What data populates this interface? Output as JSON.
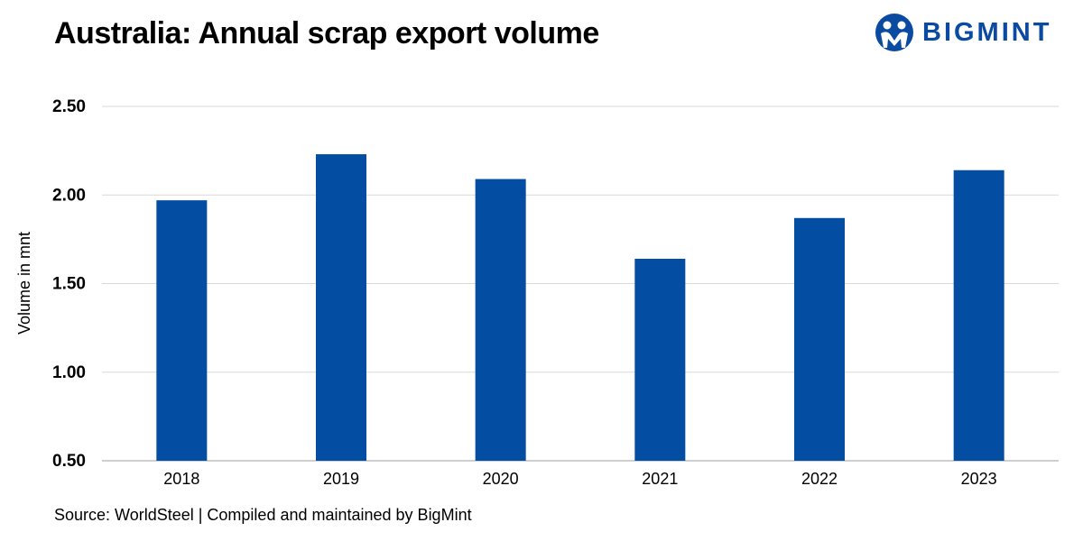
{
  "header": {
    "title": "Australia: Annual scrap export volume"
  },
  "logo": {
    "text": "BIGMINT",
    "color": "#0a4aa0"
  },
  "footer": {
    "source": "Source: WorldSteel | Compiled and maintained by BigMint"
  },
  "colors": {
    "bar": "#034ea2",
    "grid": "#d9d9d9"
  },
  "chart_data": {
    "type": "bar",
    "title": "Australia: Annual scrap export volume",
    "xlabel": "",
    "ylabel": "Volume in mnt",
    "categories": [
      "2018",
      "2019",
      "2020",
      "2021",
      "2022",
      "2023"
    ],
    "values": [
      1.97,
      2.23,
      2.09,
      1.64,
      1.87,
      2.14
    ],
    "ylim": [
      0.5,
      2.5
    ],
    "yticks": [
      "0.50",
      "1.00",
      "1.50",
      "2.00",
      "2.50"
    ],
    "grid": true,
    "legend": "none"
  }
}
